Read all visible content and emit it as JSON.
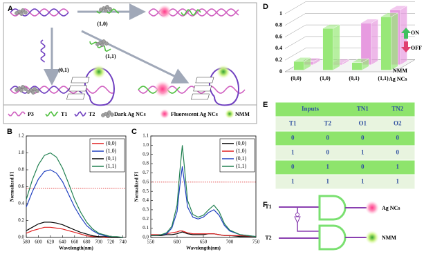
{
  "panels": {
    "A": {
      "label": "A",
      "arrow_labels": [
        "(1,0)",
        "(0,1)",
        "(1,1)"
      ],
      "legend": [
        "P3",
        "T1",
        "T2",
        "Dark Ag NCs",
        "Fluorescent Ag NCs",
        "NMM"
      ]
    },
    "E": {
      "label": "E",
      "header": [
        "Inputs",
        "TN1",
        "TN2"
      ],
      "subheader": [
        "T1",
        "T2",
        "O1",
        "O2"
      ],
      "rows": [
        [
          0,
          0,
          0,
          0
        ],
        [
          1,
          0,
          1,
          0
        ],
        [
          0,
          1,
          0,
          1
        ],
        [
          1,
          1,
          1,
          1
        ]
      ]
    },
    "F": {
      "label": "F",
      "inputs": [
        "T1",
        "T2"
      ],
      "outputs": [
        "Ag NCs",
        "NMM"
      ]
    }
  },
  "chart_data": [
    {
      "type": "line",
      "label": "B",
      "xlabel": "Wavelength(nm)",
      "ylabel": "Normalized FI",
      "x": [
        580,
        590,
        600,
        610,
        620,
        630,
        640,
        650,
        660,
        670,
        680,
        690,
        700,
        710,
        720,
        730,
        740
      ],
      "xlim": [
        580,
        745
      ],
      "xticks": [
        580,
        600,
        620,
        640,
        660,
        680,
        700,
        720,
        740
      ],
      "ylim": [
        0,
        1.2
      ],
      "yticks": [
        {
          "value": 0,
          "label": "0.0"
        },
        0.2,
        0.4,
        0.6,
        0.8,
        {
          "value": 1,
          "label": "1.0"
        },
        1.2
      ],
      "threshold": 0.58,
      "threshold_color": "#e03030",
      "series": [
        {
          "name": "(0,0)",
          "color": "#e02020",
          "values": [
            0.05,
            0.08,
            0.1,
            0.12,
            0.12,
            0.11,
            0.1,
            0.08,
            0.06,
            0.04,
            0.02,
            0.01,
            0.01,
            0,
            0,
            0,
            0
          ]
        },
        {
          "name": "(1,0)",
          "color": "#2040c0",
          "values": [
            0.36,
            0.54,
            0.69,
            0.78,
            0.8,
            0.76,
            0.66,
            0.51,
            0.36,
            0.24,
            0.14,
            0.08,
            0.04,
            0.02,
            0.01,
            0,
            0
          ]
        },
        {
          "name": "(0,1)",
          "color": "#000000",
          "values": [
            0.08,
            0.12,
            0.16,
            0.18,
            0.18,
            0.17,
            0.15,
            0.12,
            0.09,
            0.06,
            0.04,
            0.02,
            0.01,
            0.01,
            0,
            0,
            0
          ]
        },
        {
          "name": "(1,1)",
          "color": "#208050",
          "values": [
            0.45,
            0.68,
            0.86,
            0.97,
            1.0,
            0.95,
            0.82,
            0.64,
            0.45,
            0.3,
            0.18,
            0.1,
            0.05,
            0.03,
            0.01,
            0.01,
            0
          ]
        }
      ]
    },
    {
      "type": "line",
      "label": "C",
      "xlabel": "Wavelength(nm)",
      "ylabel": "Normalized FI",
      "x": [
        550,
        560,
        570,
        580,
        590,
        600,
        605,
        610,
        615,
        620,
        630,
        640,
        650,
        660,
        670,
        680,
        690,
        700,
        720,
        750
      ],
      "xlim": [
        550,
        750
      ],
      "xticks": [
        550,
        600,
        650,
        700,
        750
      ],
      "ylim": [
        0,
        1.1
      ],
      "yticks": [
        {
          "value": 0,
          "label": "0.0"
        },
        0.1,
        0.2,
        0.3,
        0.4,
        0.5,
        0.6,
        0.7,
        0.8,
        0.9,
        {
          "value": 1,
          "label": "1.0"
        },
        1.1
      ],
      "threshold": 0.6,
      "threshold_color": "#e03030",
      "series": [
        {
          "name": "(0,0)",
          "color": "#000000",
          "values": [
            0.02,
            0.02,
            0.02,
            0.03,
            0.03,
            0.04,
            0.05,
            0.06,
            0.05,
            0.04,
            0.03,
            0.03,
            0.03,
            0.04,
            0.04,
            0.03,
            0.02,
            0.02,
            0.01,
            0.01
          ]
        },
        {
          "name": "(1,0)",
          "color": "#e02020",
          "values": [
            0.03,
            0.03,
            0.03,
            0.04,
            0.05,
            0.06,
            0.07,
            0.07,
            0.06,
            0.05,
            0.04,
            0.04,
            0.04,
            0.04,
            0.04,
            0.03,
            0.02,
            0.02,
            0.02,
            0.01
          ]
        },
        {
          "name": "(0,1)",
          "color": "#2040c0",
          "values": [
            0.02,
            0.02,
            0.03,
            0.04,
            0.1,
            0.28,
            0.55,
            0.77,
            0.55,
            0.33,
            0.22,
            0.2,
            0.22,
            0.27,
            0.3,
            0.24,
            0.13,
            0.07,
            0.03,
            0.01
          ]
        },
        {
          "name": "(1,1)",
          "color": "#208050",
          "values": [
            0.02,
            0.02,
            0.03,
            0.05,
            0.12,
            0.35,
            0.7,
            1.0,
            0.7,
            0.4,
            0.25,
            0.22,
            0.24,
            0.3,
            0.35,
            0.28,
            0.15,
            0.08,
            0.03,
            0.01
          ]
        }
      ]
    },
    {
      "type": "bar3d",
      "label": "D",
      "categories": [
        "(0,0)",
        "(1,0)",
        "(0,1)",
        "(1,1)"
      ],
      "ylim": [
        0,
        1
      ],
      "yticks": [
        0,
        0.2,
        0.4,
        0.6,
        0.8,
        1
      ],
      "grid": true,
      "annotations": [
        "ON",
        "OFF"
      ],
      "series": [
        {
          "name": "NMM",
          "color": "#e79be0",
          "values": [
            0.05,
            0.03,
            0.72,
            0.95
          ]
        },
        {
          "name": "Ag NCs",
          "color": "#98e878",
          "values": [
            0.15,
            0.72,
            0.13,
            0.92
          ]
        }
      ]
    }
  ]
}
